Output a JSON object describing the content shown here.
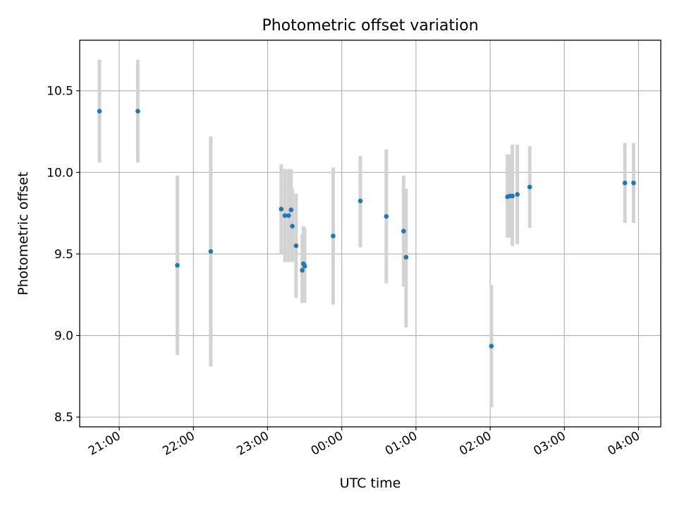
{
  "chart_data": {
    "type": "scatter",
    "title": "Photometric offset variation",
    "xlabel": "UTC time",
    "ylabel": "Photometric offset",
    "x_unit": "UTC time (hh:mm)",
    "xlim": [
      "20:28",
      "04:18"
    ],
    "ylim": [
      8.44,
      10.81
    ],
    "grid": true,
    "x_ticks": [
      "21:00",
      "22:00",
      "23:00",
      "00:00",
      "01:00",
      "02:00",
      "03:00",
      "04:00"
    ],
    "y_ticks": [
      "8.5",
      "9.0",
      "9.5",
      "10.0",
      "10.5"
    ],
    "y_tick_values": [
      8.5,
      9.0,
      9.5,
      10.0,
      10.5
    ],
    "colors": {
      "point": "#1f77b4",
      "errorbar": "#d3d3d3",
      "grid": "#b0b0b0"
    },
    "points": [
      {
        "x": "20:44",
        "y": 10.375,
        "ylo": 10.06,
        "yhi": 10.69
      },
      {
        "x": "21:15",
        "y": 10.375,
        "ylo": 10.06,
        "yhi": 10.69
      },
      {
        "x": "21:47",
        "y": 9.43,
        "ylo": 8.88,
        "yhi": 9.98
      },
      {
        "x": "22:14",
        "y": 9.515,
        "ylo": 8.81,
        "yhi": 10.22
      },
      {
        "x": "23:11",
        "y": 9.775,
        "ylo": 9.5,
        "yhi": 10.05
      },
      {
        "x": "23:14",
        "y": 9.735,
        "ylo": 9.45,
        "yhi": 10.02
      },
      {
        "x": "23:17",
        "y": 9.735,
        "ylo": 9.45,
        "yhi": 10.02
      },
      {
        "x": "23:19",
        "y": 9.77,
        "ylo": 9.52,
        "yhi": 10.02
      },
      {
        "x": "23:20",
        "y": 9.67,
        "ylo": 9.45,
        "yhi": 9.9
      },
      {
        "x": "23:23",
        "y": 9.55,
        "ylo": 9.23,
        "yhi": 9.87
      },
      {
        "x": "23:28",
        "y": 9.4,
        "ylo": 9.2,
        "yhi": 9.62
      },
      {
        "x": "23:29",
        "y": 9.44,
        "ylo": 9.2,
        "yhi": 9.67
      },
      {
        "x": "23:30",
        "y": 9.425,
        "ylo": 9.2,
        "yhi": 9.66
      },
      {
        "x": "23:53",
        "y": 9.61,
        "ylo": 9.19,
        "yhi": 10.03
      },
      {
        "x": "00:15",
        "y": 9.825,
        "ylo": 9.54,
        "yhi": 10.1
      },
      {
        "x": "00:36",
        "y": 9.73,
        "ylo": 9.32,
        "yhi": 10.14
      },
      {
        "x": "00:50",
        "y": 9.64,
        "ylo": 9.3,
        "yhi": 9.98
      },
      {
        "x": "00:52",
        "y": 9.48,
        "ylo": 9.05,
        "yhi": 9.9
      },
      {
        "x": "02:01",
        "y": 8.935,
        "ylo": 8.56,
        "yhi": 9.31
      },
      {
        "x": "02:14",
        "y": 9.85,
        "ylo": 9.6,
        "yhi": 10.11
      },
      {
        "x": "02:16",
        "y": 9.855,
        "ylo": 9.6,
        "yhi": 10.11
      },
      {
        "x": "02:18",
        "y": 9.855,
        "ylo": 9.55,
        "yhi": 10.17
      },
      {
        "x": "02:22",
        "y": 9.865,
        "ylo": 9.56,
        "yhi": 10.17
      },
      {
        "x": "02:32",
        "y": 9.91,
        "ylo": 9.66,
        "yhi": 10.16
      },
      {
        "x": "03:49",
        "y": 9.935,
        "ylo": 9.69,
        "yhi": 10.18
      },
      {
        "x": "03:56",
        "y": 9.935,
        "ylo": 9.69,
        "yhi": 10.18
      }
    ]
  }
}
